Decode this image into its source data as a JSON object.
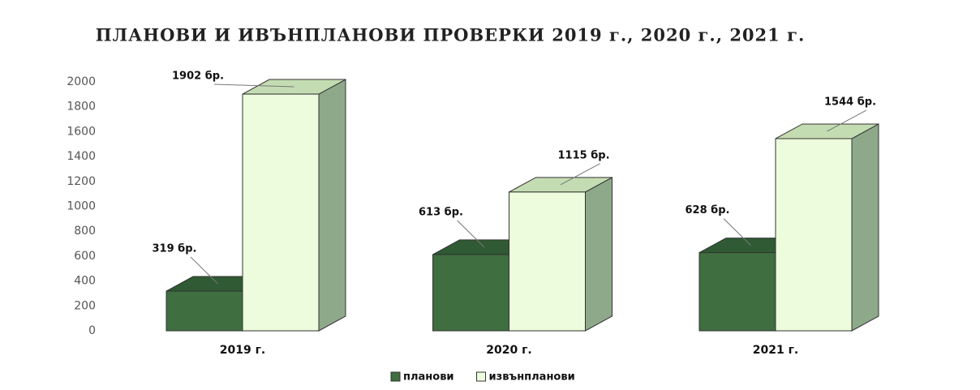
{
  "chart_data": {
    "type": "bar3d",
    "title": "ПЛАНОВИ И ИВЪНПЛАНОВИ ПРОВЕРКИ 2019 г., 2020 г., 2021 г.",
    "categories": [
      "2019 г.",
      "2020 г.",
      "2021 г."
    ],
    "series": [
      {
        "name": "планови",
        "color": "#3f6e40",
        "values": [
          319,
          613,
          628
        ],
        "value_labels": [
          "319 бр.",
          "613 бр.",
          "628 бр."
        ]
      },
      {
        "name": "извънпланови",
        "color": "#ecfcdc",
        "values": [
          1902,
          1115,
          1544
        ],
        "value_labels": [
          "1902 бр.",
          "1115 бр.",
          "1544 бр."
        ]
      }
    ],
    "ylim": [
      0,
      2000
    ],
    "yticks": [
      0,
      200,
      400,
      600,
      800,
      1000,
      1200,
      1400,
      1600,
      1800,
      2000
    ],
    "legend": "bottom"
  }
}
